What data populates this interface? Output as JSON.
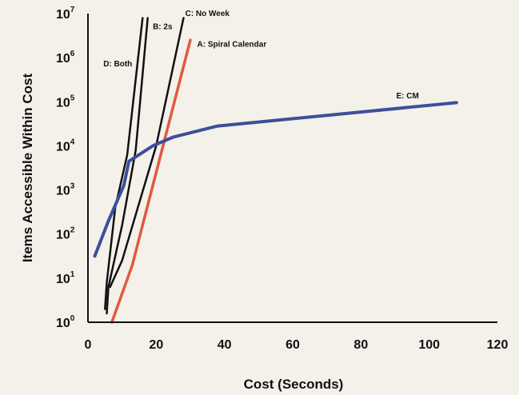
{
  "chart_data": {
    "type": "line",
    "title": "",
    "xlabel": "Cost (Seconds)",
    "ylabel": "Items Accessible Within Cost",
    "xlim": [
      0,
      120
    ],
    "ylim_log10": [
      0,
      7
    ],
    "x_ticks": [
      "0",
      "20",
      "40",
      "60",
      "80",
      "100",
      "120"
    ],
    "y_ticks": [
      {
        "base": "10",
        "exp": "0"
      },
      {
        "base": "10",
        "exp": "1"
      },
      {
        "base": "10",
        "exp": "2"
      },
      {
        "base": "10",
        "exp": "3"
      },
      {
        "base": "10",
        "exp": "4"
      },
      {
        "base": "10",
        "exp": "5"
      },
      {
        "base": "10",
        "exp": "6"
      },
      {
        "base": "10",
        "exp": "7"
      }
    ],
    "grid": false,
    "series": [
      {
        "name": "A: Spiral Calendar",
        "color": "#e05a40",
        "points": [
          [
            7,
            0
          ],
          [
            13,
            1.3
          ],
          [
            30,
            6.4
          ]
        ]
      },
      {
        "name": "B: 2s",
        "color": "#111111",
        "points": [
          [
            5.5,
            0.2
          ],
          [
            6,
            0.8
          ],
          [
            10,
            2.2
          ],
          [
            14,
            3.9
          ],
          [
            17.5,
            6.9
          ]
        ]
      },
      {
        "name": "C: No Week",
        "color": "#111111",
        "points": [
          [
            6.5,
            0.8
          ],
          [
            10,
            1.4
          ],
          [
            20,
            4.0
          ],
          [
            28,
            6.9
          ]
        ]
      },
      {
        "name": "D: Both",
        "color": "#111111",
        "points": [
          [
            5,
            0.3
          ],
          [
            5.5,
            0.9
          ],
          [
            8,
            2.6
          ],
          [
            11.5,
            3.8
          ],
          [
            16,
            6.9
          ]
        ]
      },
      {
        "name": "E: CM",
        "color": "#3d4f9a",
        "points": [
          [
            2,
            1.5
          ],
          [
            6,
            2.3
          ],
          [
            10.5,
            3.1
          ],
          [
            12,
            3.65
          ],
          [
            16,
            3.85
          ],
          [
            19,
            4.0
          ],
          [
            25,
            4.2
          ],
          [
            38,
            4.45
          ],
          [
            108,
            4.98
          ]
        ]
      }
    ]
  }
}
